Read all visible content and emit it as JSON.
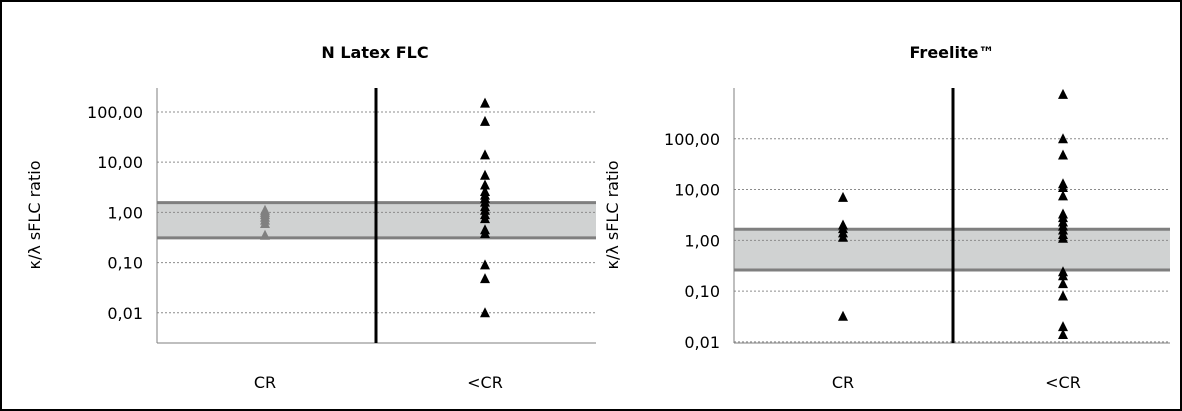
{
  "chart_data": [
    {
      "type": "scatter",
      "title": "N Latex FLC",
      "ylabel": "κ/λ sFLC ratio",
      "xlabel": "",
      "categories": [
        "CR",
        "<CR"
      ],
      "y_scale": "log",
      "ylim": [
        0.0025,
        300
      ],
      "y_tick_labels": [
        "100,00",
        "10,00",
        "1,00",
        "0,10",
        "0,01"
      ],
      "y_tick_values": [
        100,
        10,
        1,
        0.1,
        0.01
      ],
      "grid": "horizontal dotted",
      "reference_band": [
        0.31,
        1.56
      ],
      "colors": {
        "band_fill": "#d0d2d2",
        "band_line": "#7f7f7f",
        "marker": "#000000",
        "marker_cr": "#808080"
      },
      "series": [
        {
          "category": "CR",
          "color": "#808080",
          "values": [
            1.1,
            1.0,
            0.9,
            0.8,
            0.7,
            0.6,
            0.35
          ]
        },
        {
          "category": "<CR",
          "color": "#000000",
          "values": [
            150,
            65,
            14,
            5.5,
            3.5,
            2.6,
            2.2,
            1.9,
            1.6,
            1.3,
            1.1,
            0.9,
            0.75,
            0.45,
            0.38,
            0.09,
            0.048,
            0.01
          ]
        }
      ]
    },
    {
      "type": "scatter",
      "title": "Freelite™",
      "ylabel": "κ/λ sFLC ratio",
      "xlabel": "",
      "categories": [
        "CR",
        "<CR"
      ],
      "y_scale": "log",
      "ylim": [
        0.0095,
        1000
      ],
      "y_tick_labels": [
        "100,00",
        "10,00",
        "1,00",
        "0,10",
        "0,01"
      ],
      "y_tick_values": [
        100,
        10,
        1,
        0.1,
        0.01
      ],
      "grid": "horizontal dotted",
      "reference_band": [
        0.26,
        1.65
      ],
      "colors": {
        "band_fill": "#d0d2d2",
        "band_line": "#7f7f7f",
        "marker": "#000000"
      },
      "series": [
        {
          "category": "CR",
          "color": "#000000",
          "values": [
            7,
            2.0,
            1.7,
            1.4,
            1.15,
            0.032
          ]
        },
        {
          "category": "<CR",
          "color": "#000000",
          "values": [
            750,
            100,
            48,
            13,
            11,
            7.5,
            3.3,
            2.8,
            2.3,
            1.9,
            1.6,
            1.3,
            1.1,
            0.24,
            0.2,
            0.14,
            0.08,
            0.02,
            0.014
          ]
        }
      ]
    }
  ]
}
